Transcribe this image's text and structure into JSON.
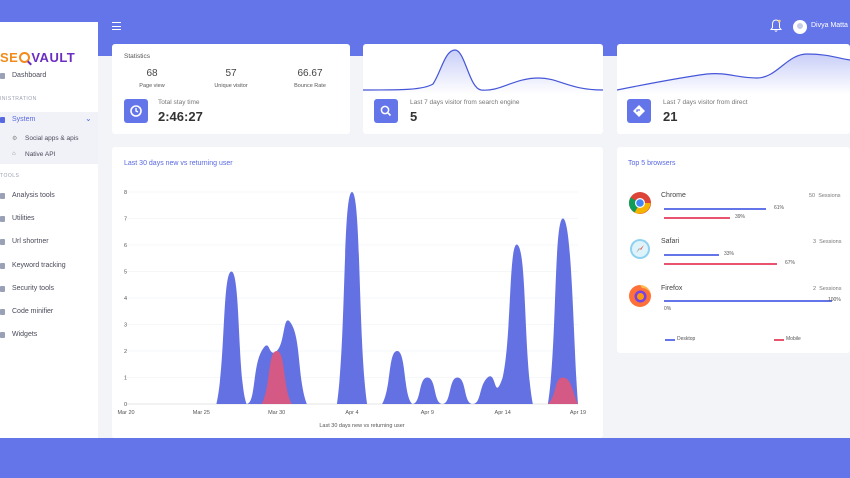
{
  "app": {
    "logo_prefix": "SE",
    "logo_suffix": "VAULT"
  },
  "header": {
    "user_name": "Divya Matta"
  },
  "sidebar": {
    "dashboard": "Dashboard",
    "section_admin": "INISTRATION",
    "system": "System",
    "sub_items": [
      "Social apps & apis",
      "Native API"
    ],
    "section_tools": "TOOLS",
    "tools": [
      "Analysis tools",
      "Utilities",
      "Url shortner",
      "Keyword tracking",
      "Security tools",
      "Code minifier",
      "Widgets"
    ]
  },
  "statistics": {
    "title": "Statistics",
    "items": [
      {
        "value": "68",
        "label": "Page view"
      },
      {
        "value": "57",
        "label": "Unique visitor"
      },
      {
        "value": "66.67",
        "label": "Bounce Rate"
      }
    ],
    "stay_label": "Total stay time",
    "stay_value": "2:46:27"
  },
  "search_card": {
    "label": "Last 7 days visitor from search engine",
    "value": "5"
  },
  "direct_card": {
    "label": "Last 7 days visitor from direct",
    "value": "21"
  },
  "colors": {
    "primary": "#6475ea",
    "mobile": "#e8546f"
  },
  "main_chart": {
    "title": "Last 30 days new vs returning user",
    "caption": "Last 30 days new vs returning user"
  },
  "chart_data": {
    "type": "area",
    "title": "Last 30 days new vs returning user",
    "xlabel": "Last 30 days new vs returning user",
    "x_tick_labels": [
      "Mar 20",
      "Mar 25",
      "Mar 30",
      "Apr 4",
      "Apr 9",
      "Apr 14",
      "Apr 19"
    ],
    "y_tick_labels": [
      "0",
      "1",
      "2",
      "3",
      "4",
      "5",
      "6",
      "7",
      "8"
    ],
    "ylim": [
      0,
      8
    ],
    "x": [
      "Mar 20",
      "Mar 21",
      "Mar 22",
      "Mar 23",
      "Mar 24",
      "Mar 25",
      "Mar 26",
      "Mar 27",
      "Mar 28",
      "Mar 29",
      "Mar 30",
      "Mar 31",
      "Apr 1",
      "Apr 2",
      "Apr 3",
      "Apr 4",
      "Apr 5",
      "Apr 6",
      "Apr 7",
      "Apr 8",
      "Apr 9",
      "Apr 10",
      "Apr 11",
      "Apr 12",
      "Apr 13",
      "Apr 14",
      "Apr 15",
      "Apr 16",
      "Apr 17",
      "Apr 18",
      "Apr 19"
    ],
    "series": [
      {
        "values": [
          0,
          0,
          0,
          0,
          0,
          0,
          0,
          5,
          0,
          2,
          2,
          3,
          0,
          0,
          0,
          8,
          0,
          0,
          2,
          0,
          1,
          0,
          1,
          0,
          1,
          1,
          6,
          0,
          0,
          7,
          0
        ]
      },
      {
        "values": [
          0,
          0,
          0,
          0,
          0,
          0,
          0,
          0,
          0,
          0,
          2,
          0,
          0,
          0,
          0,
          0,
          0,
          0,
          0,
          0,
          0,
          0,
          0,
          0,
          0,
          0,
          0,
          0,
          0,
          1,
          0
        ]
      }
    ]
  },
  "mini_chart_search": {
    "type": "line",
    "values": [
      0,
      0,
      0,
      5,
      0,
      1,
      0
    ]
  },
  "mini_chart_direct": {
    "type": "line",
    "values": [
      1,
      2,
      3,
      4,
      2,
      7,
      5
    ]
  },
  "browsers": {
    "title": "Top 5 browsers",
    "items": [
      {
        "name": "Chrome",
        "sessions": "50",
        "sessions_label": "Sessions",
        "desktop": "61%",
        "mobile": "39%",
        "desktop_frac": 0.61,
        "mobile_frac": 0.39
      },
      {
        "name": "Safari",
        "sessions": "3",
        "sessions_label": "Sessions",
        "desktop": "33%",
        "mobile": "67%",
        "desktop_frac": 0.33,
        "mobile_frac": 0.67
      },
      {
        "name": "Firefox",
        "sessions": "2",
        "sessions_label": "Sessions",
        "desktop": "100%",
        "mobile": "0%",
        "desktop_frac": 1.0,
        "mobile_frac": 0.0
      }
    ],
    "legend_desktop": "Desktop",
    "legend_mobile": "Mobile"
  }
}
